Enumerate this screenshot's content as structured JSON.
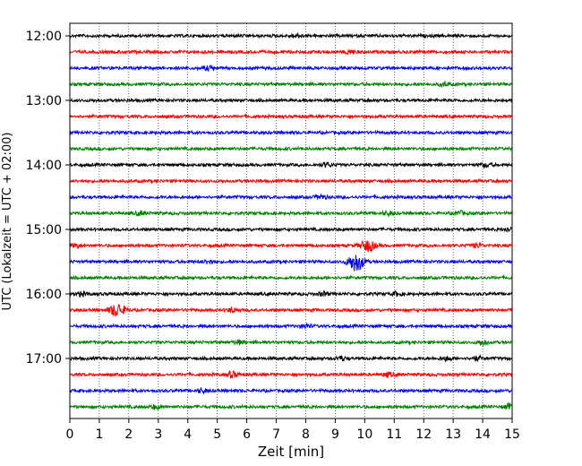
{
  "chart_data": {
    "type": "line",
    "title": "",
    "xlabel": "Zeit  [min]",
    "ylabel": "UTC (Lokalzeit = UTC + 02:00)",
    "xlim": [
      0,
      15
    ],
    "x_ticks": [
      "0",
      "1",
      "2",
      "3",
      "4",
      "5",
      "6",
      "7",
      "8",
      "9",
      "10",
      "11",
      "12",
      "13",
      "14",
      "15"
    ],
    "y_tick_labels": [
      "12:00",
      "13:00",
      "14:00",
      "15:00",
      "16:00",
      "17:00"
    ],
    "grid": "vertical dotted lines at each minute",
    "trace_interval_min": 15,
    "trace_colors_cycle": [
      "#000000",
      "#ff0000",
      "#0000ff",
      "#008000"
    ],
    "traces": [
      {
        "start": "12:00",
        "events": [
          {
            "minute": 7.7,
            "amp": 2
          }
        ]
      },
      {
        "start": "12:15",
        "events": [
          {
            "minute": 9.5,
            "amp": 2
          }
        ]
      },
      {
        "start": "12:30",
        "events": [
          {
            "minute": 4.7,
            "amp": 2
          }
        ]
      },
      {
        "start": "12:45",
        "events": [
          {
            "minute": 12.7,
            "amp": 2
          }
        ]
      },
      {
        "start": "13:00",
        "events": []
      },
      {
        "start": "13:15",
        "events": []
      },
      {
        "start": "13:30",
        "events": []
      },
      {
        "start": "13:45",
        "events": []
      },
      {
        "start": "14:00",
        "events": [
          {
            "minute": 8.7,
            "amp": 2
          },
          {
            "minute": 14.1,
            "amp": 2
          }
        ]
      },
      {
        "start": "14:15",
        "events": []
      },
      {
        "start": "14:30",
        "events": [
          {
            "minute": 8.5,
            "amp": 2
          }
        ]
      },
      {
        "start": "14:45",
        "events": [
          {
            "minute": 2.4,
            "amp": 2
          },
          {
            "minute": 10.8,
            "amp": 2
          },
          {
            "minute": 13.2,
            "amp": 2
          }
        ]
      },
      {
        "start": "15:00",
        "events": [
          {
            "minute": 14.9,
            "amp": 2
          }
        ]
      },
      {
        "start": "15:15",
        "events": [
          {
            "minute": 0.2,
            "amp": 2
          },
          {
            "minute": 10.1,
            "amp": 6
          },
          {
            "minute": 13.8,
            "amp": 2
          }
        ]
      },
      {
        "start": "15:30",
        "events": [
          {
            "minute": 4.7,
            "amp": 2
          },
          {
            "minute": 9.7,
            "amp": 10
          }
        ]
      },
      {
        "start": "15:45",
        "events": []
      },
      {
        "start": "16:00",
        "events": [
          {
            "minute": 0.4,
            "amp": 2
          },
          {
            "minute": 8.6,
            "amp": 2
          },
          {
            "minute": 11.1,
            "amp": 2
          }
        ]
      },
      {
        "start": "16:15",
        "events": [
          {
            "minute": 1.6,
            "amp": 7
          },
          {
            "minute": 5.5,
            "amp": 2
          }
        ]
      },
      {
        "start": "16:30",
        "events": [
          {
            "minute": 8.0,
            "amp": 2
          }
        ]
      },
      {
        "start": "16:45",
        "events": [
          {
            "minute": 5.7,
            "amp": 2
          },
          {
            "minute": 14.0,
            "amp": 3
          }
        ]
      },
      {
        "start": "17:00",
        "events": [
          {
            "minute": 9.2,
            "amp": 2
          },
          {
            "minute": 12.8,
            "amp": 2
          },
          {
            "minute": 13.8,
            "amp": 2
          }
        ]
      },
      {
        "start": "17:15",
        "events": [
          {
            "minute": 5.5,
            "amp": 3
          },
          {
            "minute": 10.8,
            "amp": 2
          }
        ]
      },
      {
        "start": "17:30",
        "events": [
          {
            "minute": 4.5,
            "amp": 2
          }
        ]
      },
      {
        "start": "17:45",
        "events": [
          {
            "minute": 2.9,
            "amp": 2
          },
          {
            "minute": 14.9,
            "amp": 3
          }
        ]
      }
    ]
  }
}
